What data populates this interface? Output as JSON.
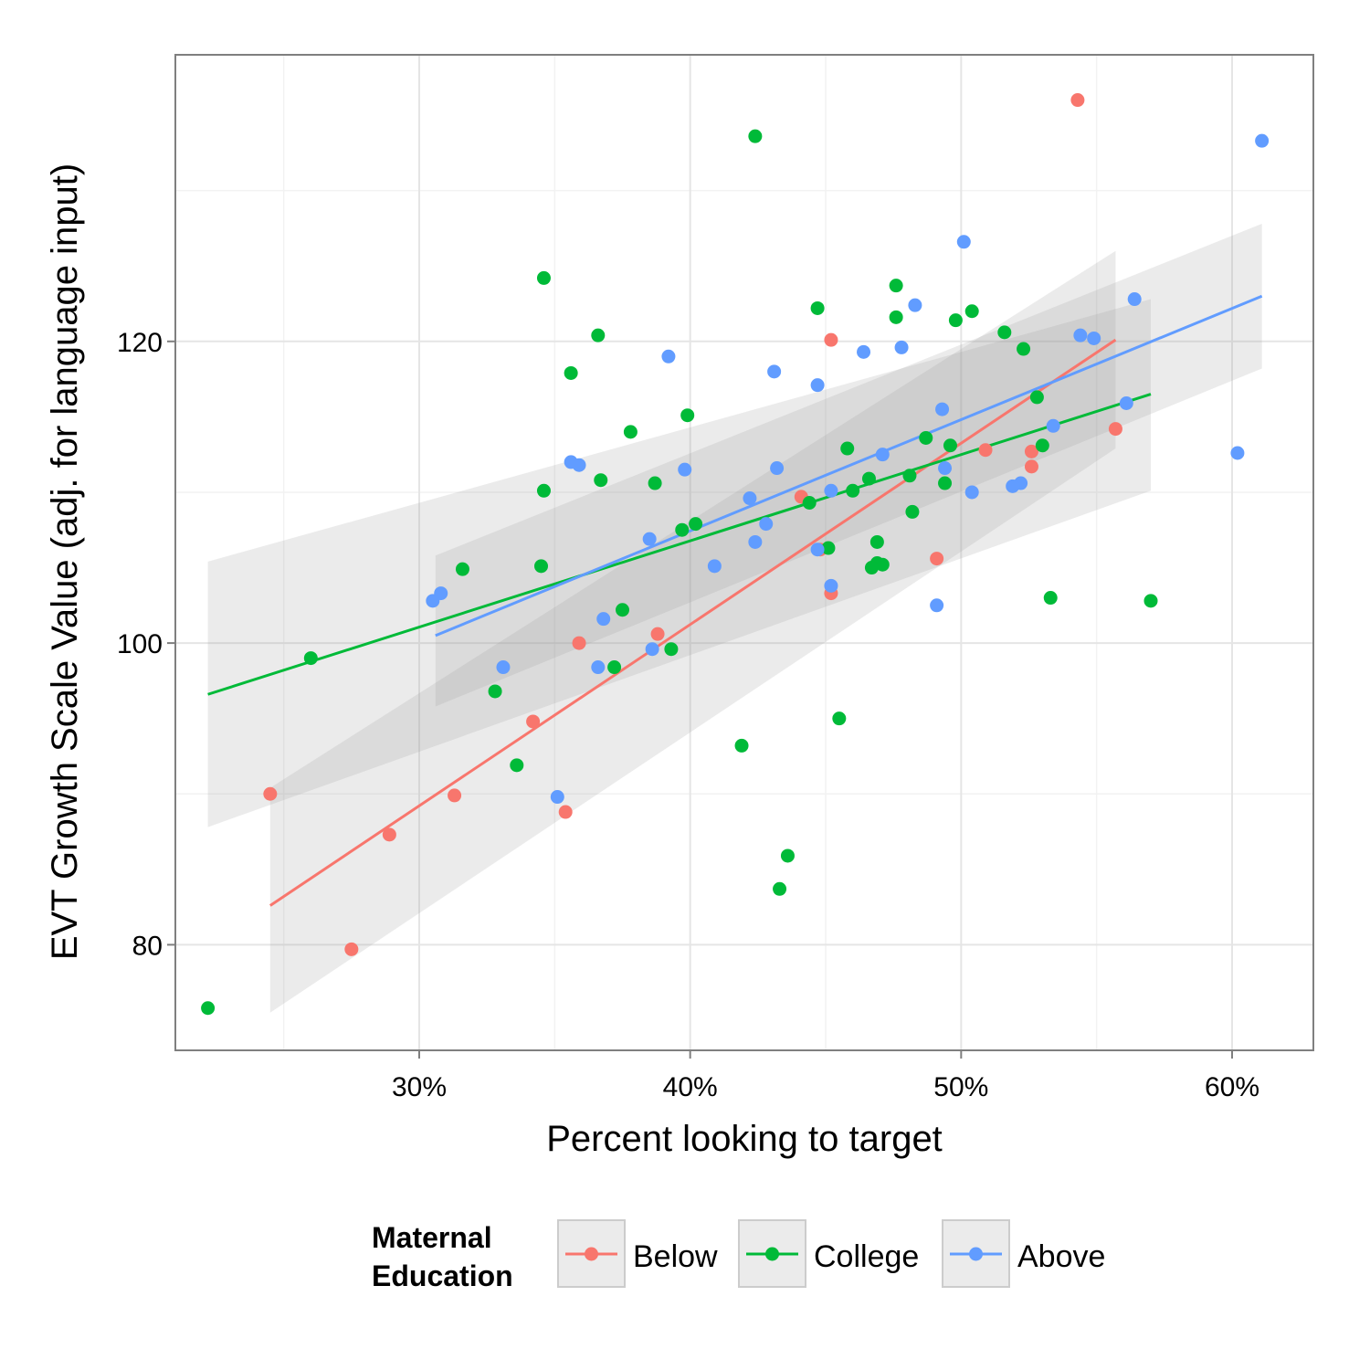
{
  "chart_data": {
    "type": "scatter",
    "xlabel": "Percent looking to target",
    "ylabel": "EVT Growth Scale Value (adj. for language input)",
    "xlim": [
      0.21,
      0.63
    ],
    "ylim": [
      73,
      139
    ],
    "x_ticks": [
      0.3,
      0.4,
      0.5,
      0.6
    ],
    "x_tick_labels": [
      "30%",
      "40%",
      "50%",
      "60%"
    ],
    "y_ticks": [
      80,
      100,
      120
    ],
    "y_tick_labels": [
      "80",
      "100",
      "120"
    ],
    "grid": true,
    "legend_position": "bottom",
    "legend_title": [
      "Maternal",
      "Education"
    ],
    "series": [
      {
        "name": "Below",
        "color": "#F8766D",
        "trend": {
          "x": [
            0.245,
            0.557
          ],
          "y": [
            82.6,
            120.1
          ]
        },
        "ci": {
          "x": [
            0.245,
            0.557
          ],
          "upper": [
            90.4,
            126.0
          ],
          "lower": [
            75.5,
            112.9
          ]
        },
        "points": [
          [
            0.543,
            136.0
          ],
          [
            0.452,
            120.1
          ],
          [
            0.557,
            114.2
          ],
          [
            0.509,
            112.8
          ],
          [
            0.526,
            112.7
          ],
          [
            0.526,
            111.7
          ],
          [
            0.441,
            109.7
          ],
          [
            0.448,
            106.2
          ],
          [
            0.491,
            105.6
          ],
          [
            0.452,
            103.3
          ],
          [
            0.388,
            100.6
          ],
          [
            0.359,
            100.0
          ],
          [
            0.342,
            94.8
          ],
          [
            0.245,
            90.0
          ],
          [
            0.313,
            89.9
          ],
          [
            0.354,
            88.8
          ],
          [
            0.289,
            87.3
          ],
          [
            0.275,
            79.7
          ]
        ]
      },
      {
        "name": "College",
        "color": "#00BA38",
        "trend": {
          "x": [
            0.222,
            0.57
          ],
          "y": [
            96.6,
            116.5
          ]
        },
        "ci": {
          "x": [
            0.222,
            0.57
          ],
          "upper": [
            105.4,
            122.8
          ],
          "lower": [
            87.8,
            110.1
          ]
        },
        "points": [
          [
            0.424,
            133.6
          ],
          [
            0.346,
            124.2
          ],
          [
            0.476,
            123.7
          ],
          [
            0.447,
            122.2
          ],
          [
            0.504,
            122.0
          ],
          [
            0.476,
            121.6
          ],
          [
            0.498,
            121.4
          ],
          [
            0.516,
            120.6
          ],
          [
            0.366,
            120.4
          ],
          [
            0.523,
            119.5
          ],
          [
            0.356,
            117.9
          ],
          [
            0.528,
            116.3
          ],
          [
            0.399,
            115.1
          ],
          [
            0.378,
            114.0
          ],
          [
            0.487,
            113.6
          ],
          [
            0.496,
            113.1
          ],
          [
            0.53,
            113.1
          ],
          [
            0.458,
            112.9
          ],
          [
            0.481,
            111.1
          ],
          [
            0.466,
            110.9
          ],
          [
            0.367,
            110.8
          ],
          [
            0.387,
            110.6
          ],
          [
            0.494,
            110.6
          ],
          [
            0.346,
            110.1
          ],
          [
            0.46,
            110.1
          ],
          [
            0.444,
            109.3
          ],
          [
            0.482,
            108.7
          ],
          [
            0.402,
            107.9
          ],
          [
            0.397,
            107.5
          ],
          [
            0.469,
            106.7
          ],
          [
            0.451,
            106.3
          ],
          [
            0.469,
            105.3
          ],
          [
            0.471,
            105.2
          ],
          [
            0.467,
            105.0
          ],
          [
            0.345,
            105.1
          ],
          [
            0.316,
            104.9
          ],
          [
            0.533,
            103.0
          ],
          [
            0.57,
            102.8
          ],
          [
            0.375,
            102.2
          ],
          [
            0.26,
            99.0
          ],
          [
            0.393,
            99.6
          ],
          [
            0.372,
            98.4
          ],
          [
            0.328,
            96.8
          ],
          [
            0.455,
            95.0
          ],
          [
            0.419,
            93.2
          ],
          [
            0.336,
            91.9
          ],
          [
            0.436,
            85.9
          ],
          [
            0.433,
            83.7
          ],
          [
            0.222,
            75.8
          ]
        ]
      },
      {
        "name": "Above",
        "color": "#619CFF",
        "trend": {
          "x": [
            0.306,
            0.611
          ],
          "y": [
            100.5,
            123.0
          ]
        },
        "ci": {
          "x": [
            0.306,
            0.611
          ],
          "upper": [
            105.8,
            127.8
          ],
          "lower": [
            95.8,
            118.2
          ]
        },
        "points": [
          [
            0.611,
            133.3
          ],
          [
            0.501,
            126.6
          ],
          [
            0.564,
            122.8
          ],
          [
            0.483,
            122.4
          ],
          [
            0.544,
            120.4
          ],
          [
            0.549,
            120.2
          ],
          [
            0.478,
            119.6
          ],
          [
            0.464,
            119.3
          ],
          [
            0.392,
            119.0
          ],
          [
            0.431,
            118.0
          ],
          [
            0.447,
            117.1
          ],
          [
            0.561,
            115.9
          ],
          [
            0.493,
            115.5
          ],
          [
            0.534,
            114.4
          ],
          [
            0.471,
            112.5
          ],
          [
            0.602,
            112.6
          ],
          [
            0.356,
            112.0
          ],
          [
            0.359,
            111.8
          ],
          [
            0.432,
            111.6
          ],
          [
            0.398,
            111.5
          ],
          [
            0.494,
            111.6
          ],
          [
            0.522,
            110.6
          ],
          [
            0.519,
            110.4
          ],
          [
            0.452,
            110.1
          ],
          [
            0.504,
            110.0
          ],
          [
            0.422,
            109.6
          ],
          [
            0.428,
            107.9
          ],
          [
            0.385,
            106.9
          ],
          [
            0.424,
            106.7
          ],
          [
            0.447,
            106.2
          ],
          [
            0.409,
            105.1
          ],
          [
            0.452,
            103.8
          ],
          [
            0.308,
            103.3
          ],
          [
            0.305,
            102.8
          ],
          [
            0.491,
            102.5
          ],
          [
            0.368,
            101.6
          ],
          [
            0.386,
            99.6
          ],
          [
            0.331,
            98.4
          ],
          [
            0.366,
            98.4
          ],
          [
            0.351,
            89.8
          ]
        ]
      }
    ]
  }
}
